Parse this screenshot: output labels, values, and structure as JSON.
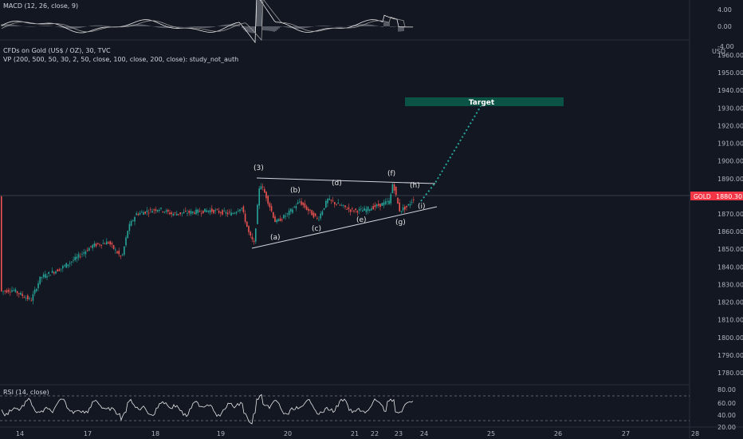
{
  "header": {
    "macd_label": "MACD (12, 26, close, 9)",
    "symbol_label": "CFDs on Gold (US$ / OZ), 30, TVC",
    "vp_label": "VP (200, 500, 50, 30, 2, 50, close, 100, close, 200, close): study_not_auth",
    "rsi_label": "RSI (14, close)"
  },
  "price_axis": {
    "currency": "USD",
    "ticks": [
      "1960.00",
      "1950.00",
      "1940.00",
      "1930.00",
      "1920.00",
      "1910.00",
      "1900.00",
      "1890.00",
      "1880.00",
      "1870.00",
      "1860.00",
      "1850.00",
      "1840.00",
      "1830.00",
      "1820.00",
      "1810.00",
      "1800.00",
      "1790.00",
      "1780.00"
    ],
    "badge_symbol": "GOLD",
    "badge_price": "1880.30",
    "badge_color": "#f23645"
  },
  "macd_axis": {
    "ticks": [
      "4.00",
      "0.00",
      "-4.00"
    ]
  },
  "rsi_axis": {
    "ticks": [
      "80.00",
      "60.00",
      "40.00",
      "20.00"
    ]
  },
  "time_axis": {
    "ticks": [
      "14",
      "17",
      "18",
      "19",
      "20",
      "21",
      "22",
      "23",
      "24",
      "25",
      "26",
      "27",
      "28"
    ]
  },
  "target": {
    "label": "Target",
    "color": "#0b5345"
  },
  "waves": [
    "(3)",
    "(a)",
    "(b)",
    "(c)",
    "(d)",
    "(e)",
    "(f)",
    "(g)",
    "(h)",
    "(i)"
  ],
  "colors": {
    "up": "#26a69a",
    "down": "#ef5350",
    "background": "#131722",
    "projection": "#26a69a"
  },
  "chart_data": {
    "type": "line",
    "title": "",
    "xlabel": "",
    "ylabel": "",
    "ylim": [
      1775,
      1965
    ],
    "x": [
      "14",
      "17",
      "18",
      "19",
      "20",
      "21",
      "22",
      "23",
      "24"
    ],
    "series": [
      {
        "values": [
          1826,
          1825,
          1846,
          1872,
          1869,
          1887,
          1872,
          1877,
          1876
        ]
      }
    ],
    "last_price": 1880.3,
    "target_zone": [
      1932,
      1935
    ],
    "rsi_levels": [
      70,
      30
    ]
  }
}
